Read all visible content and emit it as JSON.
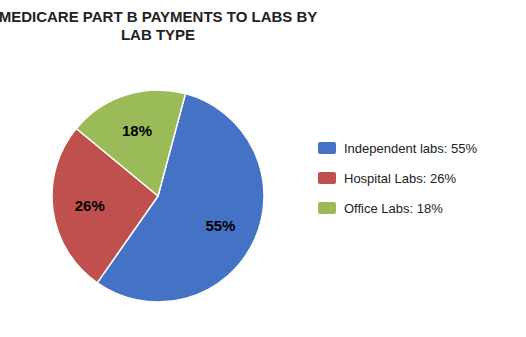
{
  "chart_data": {
    "type": "pie",
    "title": "MEDICARE PART B PAYMENTS TO LABS BY\nLAB TYPE",
    "categories": [
      "Independent labs: 55%",
      "Hospital Labs: 26%",
      "Office Labs: 18%"
    ],
    "values": [
      55,
      26,
      18
    ],
    "value_labels": [
      "55%",
      "26%",
      "18%"
    ],
    "colors": [
      "#4472C4",
      "#C0504D",
      "#9BBB59"
    ],
    "data_labels": true,
    "legend": "right"
  }
}
